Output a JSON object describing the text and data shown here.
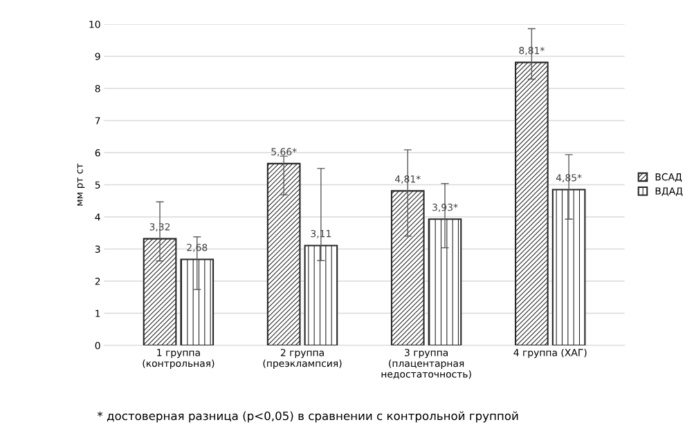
{
  "chart_data": {
    "type": "bar",
    "ylabel": "мм рт ст",
    "categories": [
      "1 группа\n(контрольная)",
      "2 группа\n(преэклампсия)",
      "3 группа\n(плацентарная\nнедостаточность)",
      "4 группа (ХАГ)"
    ],
    "series": [
      {
        "name": "ВСАД",
        "color": "#262626",
        "values": [
          3.32,
          5.66,
          4.81,
          8.81
        ],
        "value_labels": [
          "3,32",
          "5,66*",
          "4,81*",
          "8,81*"
        ],
        "errors": [
          [
            2.63,
            4.47
          ],
          [
            4.69,
            5.89
          ],
          [
            3.4,
            6.09
          ],
          [
            8.29,
            9.86
          ]
        ]
      },
      {
        "name": "ВДАД",
        "color": "#262626",
        "values": [
          2.68,
          3.11,
          3.93,
          4.85
        ],
        "value_labels": [
          "2,68",
          "3,11",
          "3,93*",
          "4,85*"
        ],
        "errors": [
          [
            1.74,
            3.38
          ],
          [
            2.64,
            5.51
          ],
          [
            3.04,
            5.04
          ],
          [
            3.93,
            5.94
          ]
        ]
      }
    ],
    "ylim": [
      0,
      10
    ],
    "yticks": [
      0,
      1,
      2,
      3,
      4,
      5,
      6,
      7,
      8,
      9,
      10
    ],
    "grid": "y",
    "legend": "right",
    "annotations": [
      "* достоверная разница (p<0,05) в сравнении с контрольной группой"
    ]
  }
}
